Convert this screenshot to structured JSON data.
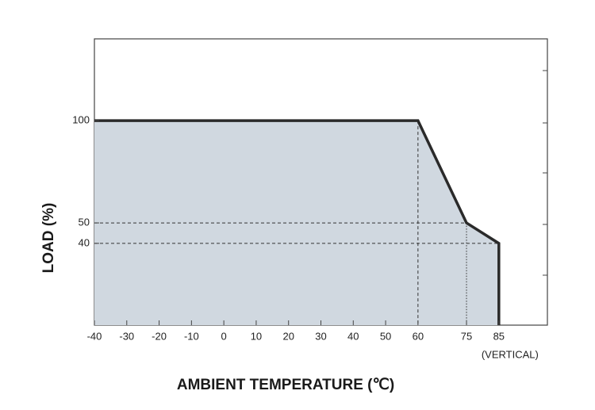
{
  "chart_data": {
    "type": "area",
    "x_label": "AMBIENT TEMPERATURE (℃)",
    "y_label": "LOAD (%)",
    "annotation": "(VERTICAL)",
    "x": [
      -40,
      60,
      75,
      85,
      85
    ],
    "values": [
      100,
      100,
      50,
      40,
      0
    ],
    "color": "#2a2a2a",
    "fill": "#d0d8e0",
    "xlim": [
      -40,
      100
    ],
    "ylim": [
      0,
      140
    ],
    "xticks": [
      -40,
      -30,
      -20,
      -10,
      0,
      10,
      20,
      30,
      40,
      50,
      60,
      75,
      85
    ],
    "yticks": [
      40,
      50,
      100
    ]
  }
}
